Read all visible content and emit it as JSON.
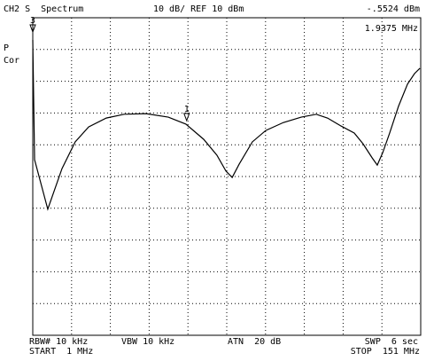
{
  "chart_data": {
    "type": "line",
    "title": "CH2 S  Spectrum",
    "scale": "10 dB/ REF 10 dBm",
    "readout_level": "-.5524 dBm",
    "readout_freq": "1.9375 MHz",
    "status": [
      "P",
      "Cor"
    ],
    "footer": {
      "rbw": "RBW# 10 kHz",
      "vbw": "VBW 10 kHz",
      "atn": "ATN  20 dB",
      "swp": "SWP  6 sec",
      "start": "START  1 MHz",
      "stop": "STOP  151 MHz"
    },
    "xlim": [
      1,
      151
    ],
    "ylim": [
      -90,
      10
    ],
    "color": "#000000",
    "markers": [
      {
        "label": "1",
        "x": 60.5,
        "y": -23.5
      },
      {
        "label": "3",
        "x": 1,
        "y": 4.4
      }
    ],
    "x": [
      1,
      1.7,
      6.8,
      12.3,
      17.4,
      22.6,
      29.4,
      36.3,
      44.8,
      53.4,
      60.2,
      67.1,
      72.2,
      75.7,
      78.1,
      80.8,
      85.9,
      91.1,
      97.9,
      104.8,
      110.6,
      115.0,
      120.2,
      125.3,
      128.7,
      132.2,
      134.2,
      136.3,
      139.0,
      142.4,
      145.9,
      148.6,
      150.7
    ],
    "values": [
      3.0,
      -34.7,
      -50.3,
      -37.5,
      -29.1,
      -24.4,
      -21.6,
      -20.4,
      -20.2,
      -21.3,
      -23.5,
      -28.3,
      -33.3,
      -38.3,
      -40.3,
      -36.1,
      -29.1,
      -25.5,
      -23.0,
      -21.3,
      -20.4,
      -21.6,
      -24.1,
      -26.3,
      -29.7,
      -34.1,
      -36.4,
      -32.5,
      -26.3,
      -17.9,
      -10.9,
      -7.6,
      -5.9
    ]
  }
}
